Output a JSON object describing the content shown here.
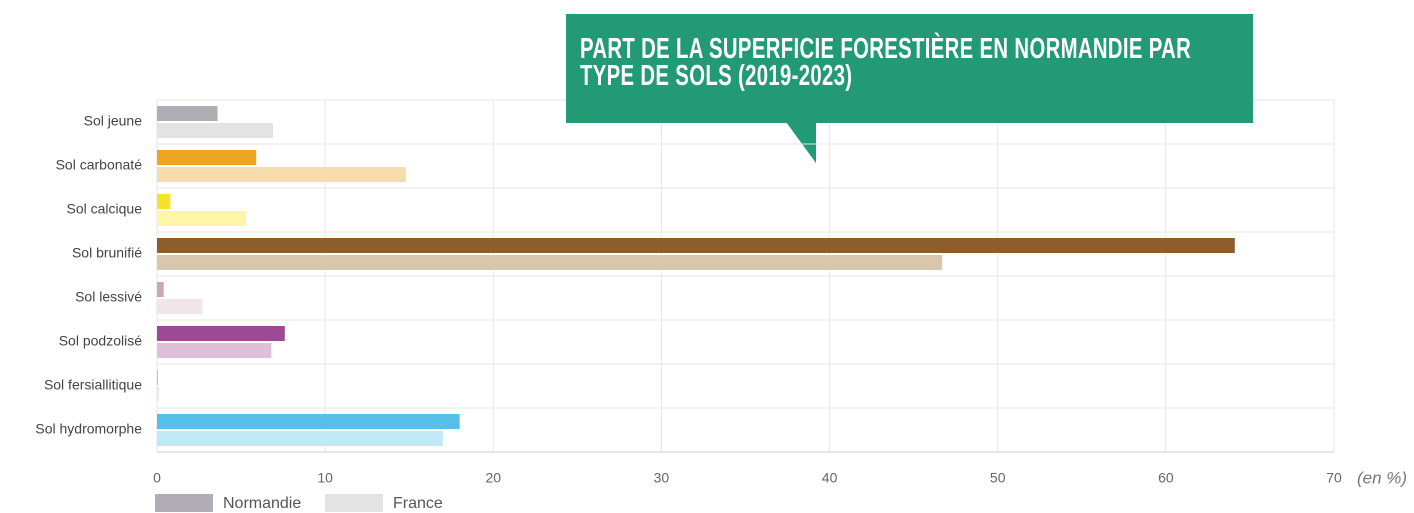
{
  "chart_data": {
    "type": "bar",
    "orientation": "horizontal",
    "title": "PART DE LA SUPERFICIE FORESTIÈRE EN NORMANDIE PAR TYPE DE SOLS (2019-2023)",
    "x_label": "(en %)",
    "categories": [
      "Sol jeune",
      "Sol carbonaté",
      "Sol calcique",
      "Sol brunifié",
      "Sol lessivé",
      "Sol podzolisé",
      "Sol fersiallitique",
      "Sol hydromorphe"
    ],
    "series": [
      {
        "name": "Normandie",
        "color": "#b0aeb4",
        "values": [
          3.6,
          5.9,
          0.8,
          64.1,
          0.4,
          7.6,
          0.05,
          18.0
        ],
        "colors": [
          "#b0aeb4",
          "#eba520",
          "#f5e22a",
          "#8b5e2b",
          "#c9a8b8",
          "#9b4a94",
          "#9fd0c6",
          "#56bfe8"
        ]
      },
      {
        "name": "France",
        "color": "#e3e3e3",
        "values": [
          6.9,
          14.8,
          5.3,
          46.7,
          2.7,
          6.8,
          0.1,
          17.0
        ],
        "colors": [
          "#e3e3e3",
          "#f6dcac",
          "#fdf6a8",
          "#d8c6ad",
          "#f1e4ea",
          "#dfbfda",
          "#d6ece8",
          "#c3e8f5"
        ]
      }
    ],
    "xlim": [
      0,
      70
    ],
    "xticks": [
      0,
      10,
      20,
      30,
      40,
      50,
      60,
      70
    ],
    "grid": true
  }
}
